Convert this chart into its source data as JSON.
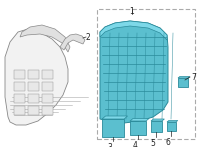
{
  "bg_color": "#ffffff",
  "teal": "#5bbfcf",
  "teal_light": "#7dd8e8",
  "teal_dark": "#2a8a9a",
  "gray_fill": "#f2f2f2",
  "gray_edge": "#888888",
  "gray_line": "#aaaaaa",
  "black": "#222222",
  "label_fs": 5.5,
  "dashed_edge": "#aaaaaa"
}
